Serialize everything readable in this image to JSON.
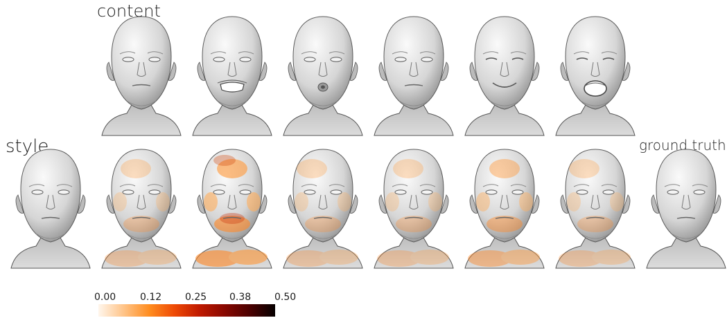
{
  "labels": {
    "content": "content",
    "style": "style",
    "ground_truth": "ground truth"
  },
  "top_row": [
    {
      "expression": "neutral"
    },
    {
      "expression": "grin"
    },
    {
      "expression": "pucker"
    },
    {
      "expression": "neutral"
    },
    {
      "expression": "squint-smile"
    },
    {
      "expression": "mouth-open"
    }
  ],
  "bottom_row": [
    {
      "kind": "style",
      "heatmap": "none",
      "expression": "neutral"
    },
    {
      "kind": "result",
      "heatmap": "light",
      "expression": "neutral"
    },
    {
      "kind": "result",
      "heatmap": "strong",
      "expression": "neutral"
    },
    {
      "kind": "result",
      "heatmap": "light",
      "expression": "neutral"
    },
    {
      "kind": "result",
      "heatmap": "light",
      "expression": "neutral"
    },
    {
      "kind": "result",
      "heatmap": "medium",
      "expression": "neutral"
    },
    {
      "kind": "result",
      "heatmap": "light",
      "expression": "neutral"
    },
    {
      "kind": "ground-truth",
      "heatmap": "none",
      "expression": "neutral"
    }
  ],
  "colorbar": {
    "ticks": [
      "0.00",
      "0.12",
      "0.25",
      "0.38",
      "0.50"
    ],
    "colors": [
      "#fff6ec",
      "#ffc58a",
      "#ff8c1e",
      "#ee4a05",
      "#c01a00",
      "#8a0800",
      "#4a0000",
      "#050000"
    ]
  }
}
